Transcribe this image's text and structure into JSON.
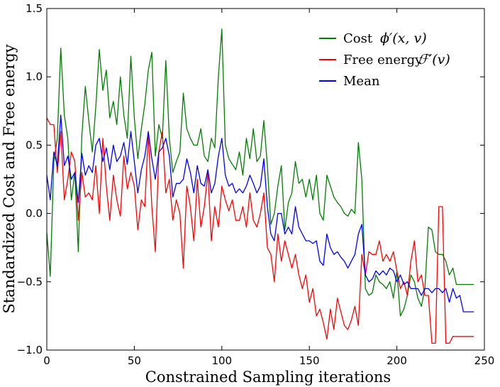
{
  "chart_data": {
    "type": "line",
    "xlabel": "Constrained Sampling iterations",
    "ylabel": "Standardized Cost and Free energy",
    "xlim": [
      0,
      250
    ],
    "ylim": [
      -1.0,
      1.5
    ],
    "xticks": [
      0,
      50,
      100,
      150,
      200,
      250
    ],
    "xtick_labels": [
      "0",
      "50",
      "100",
      "150",
      "200",
      "250"
    ],
    "yticks": [
      -1.0,
      -0.5,
      0.0,
      0.5,
      1.0,
      1.5
    ],
    "ytick_labels": [
      "−1.0",
      "−0.5",
      "0.0",
      "0.5",
      "1.0",
      "1.5"
    ],
    "grid": false,
    "legend_position": "top-right",
    "x": [
      0,
      2,
      4,
      6,
      8,
      10,
      12,
      14,
      16,
      18,
      20,
      22,
      24,
      26,
      28,
      30,
      32,
      34,
      36,
      38,
      40,
      42,
      44,
      46,
      48,
      50,
      52,
      54,
      56,
      58,
      60,
      62,
      64,
      66,
      68,
      70,
      72,
      74,
      76,
      78,
      80,
      82,
      84,
      86,
      88,
      90,
      92,
      94,
      96,
      98,
      100,
      102,
      104,
      106,
      108,
      110,
      112,
      114,
      116,
      118,
      120,
      122,
      124,
      126,
      128,
      130,
      132,
      134,
      136,
      138,
      140,
      142,
      144,
      146,
      148,
      150,
      152,
      154,
      156,
      158,
      160,
      162,
      164,
      166,
      168,
      170,
      172,
      174,
      176,
      178,
      180,
      182,
      184,
      186,
      188,
      190,
      192,
      194,
      196,
      198,
      200,
      202,
      204,
      206,
      208,
      210,
      212,
      214,
      216,
      218,
      220,
      222,
      224,
      226,
      228,
      230,
      232,
      234,
      236,
      238,
      240,
      242,
      244
    ],
    "series": [
      {
        "name": "Cost",
        "legend_math": "ϕ′(x, v)",
        "color": "#007f00",
        "values": [
          -0.14,
          -0.46,
          0.38,
          0.55,
          1.21,
          0.72,
          0.55,
          0.1,
          0.3,
          -0.28,
          0.57,
          0.93,
          0.68,
          0.45,
          0.78,
          1.2,
          0.9,
          1.05,
          0.7,
          0.82,
          0.65,
          1.0,
          0.72,
          0.55,
          1.15,
          0.7,
          0.4,
          0.62,
          0.8,
          1.05,
          1.18,
          0.42,
          0.65,
          0.55,
          1.12,
          0.55,
          0.3,
          0.38,
          0.45,
          0.88,
          0.62,
          0.55,
          0.5,
          0.5,
          0.62,
          0.42,
          0.38,
          0.55,
          0.48,
          1.0,
          1.35,
          0.5,
          0.4,
          0.36,
          0.32,
          0.45,
          0.28,
          0.55,
          0.4,
          0.62,
          0.38,
          0.42,
          0.68,
          0.35,
          -0.08,
          0.0,
          0.2,
          0.35,
          -0.12,
          0.08,
          0.15,
          0.38,
          0.22,
          0.25,
          0.12,
          0.25,
          0.1,
          0.28,
          0.0,
          -0.05,
          0.28,
          0.2,
          0.12,
          0.08,
          0.05,
          0.0,
          -0.02,
          0.03,
          0.0,
          0.52,
          0.25,
          -0.55,
          -0.6,
          -0.58,
          -0.45,
          -0.5,
          -0.52,
          -0.55,
          -0.5,
          -0.62,
          -0.42,
          -0.75,
          -0.7,
          -0.6,
          -0.45,
          -0.5,
          -0.62,
          -0.68,
          -0.55,
          -0.1,
          -0.12,
          -0.28,
          -0.3,
          -0.3,
          -0.35,
          -0.45,
          -0.4,
          -0.52,
          -0.52,
          -0.52,
          -0.52,
          -0.52,
          -0.52
        ]
      },
      {
        "name": "Free energy",
        "legend_math": "ℱ′(v)",
        "color": "#ff0000",
        "values": [
          0.7,
          0.65,
          0.65,
          0.3,
          0.6,
          0.1,
          0.25,
          0.45,
          0.38,
          -0.05,
          0.3,
          0.12,
          0.15,
          0.1,
          0.35,
          0.0,
          0.55,
          0.2,
          -0.05,
          0.28,
          0.1,
          -0.02,
          0.42,
          0.18,
          0.3,
          0.2,
          -0.12,
          0.1,
          0.05,
          0.58,
          0.05,
          -0.28,
          0.45,
          0.6,
          0.15,
          0.25,
          -0.05,
          0.1,
          0.0,
          -0.4,
          0.2,
          0.05,
          -0.2,
          0.25,
          -0.1,
          0.05,
          0.3,
          -0.2,
          0.05,
          -0.1,
          0.2,
          0.1,
          0.02,
          0.1,
          -0.05,
          -0.05,
          0.05,
          -0.1,
          0.15,
          -0.05,
          -0.1,
          0.0,
          0.15,
          -0.25,
          -0.3,
          -0.5,
          -0.15,
          -0.35,
          -0.2,
          -0.3,
          -0.4,
          -0.3,
          -0.45,
          -0.55,
          -0.45,
          -0.65,
          -0.55,
          -0.75,
          -0.7,
          -0.8,
          -0.92,
          -0.7,
          -0.85,
          -0.62,
          -0.72,
          -0.82,
          -0.85,
          -0.78,
          -0.68,
          -0.82,
          -0.3,
          -0.45,
          -0.28,
          -0.3,
          -0.3,
          -0.2,
          -0.35,
          -0.3,
          -0.35,
          -0.28,
          -0.42,
          -0.55,
          -0.5,
          -0.6,
          -0.35,
          -0.2,
          -0.5,
          -0.45,
          -0.6,
          -0.6,
          -0.95,
          -0.95,
          0.05,
          0.05,
          -0.95,
          -0.95,
          -0.9,
          -0.9,
          -0.9,
          -0.9,
          -0.9,
          -0.9,
          -0.9
        ]
      },
      {
        "name": "Mean",
        "legend_math": "",
        "color": "#0000ff",
        "values": [
          0.28,
          0.1,
          0.45,
          0.35,
          0.72,
          0.35,
          0.42,
          0.25,
          0.3,
          0.08,
          0.44,
          0.28,
          0.35,
          0.3,
          0.5,
          0.55,
          0.38,
          0.48,
          0.32,
          0.5,
          0.38,
          0.42,
          0.52,
          0.36,
          0.6,
          0.38,
          0.15,
          0.32,
          0.42,
          0.6,
          0.4,
          0.25,
          0.45,
          0.48,
          0.55,
          0.42,
          0.12,
          0.22,
          0.22,
          0.25,
          0.4,
          0.3,
          0.15,
          0.35,
          0.22,
          0.2,
          0.32,
          0.15,
          0.22,
          0.42,
          0.55,
          0.28,
          0.2,
          0.22,
          0.15,
          0.18,
          0.15,
          0.2,
          0.28,
          0.22,
          0.15,
          0.2,
          0.4,
          0.05,
          -0.15,
          -0.2,
          0.0,
          0.0,
          -0.15,
          -0.1,
          -0.15,
          0.05,
          -0.1,
          -0.15,
          -0.2,
          -0.2,
          -0.22,
          -0.2,
          -0.35,
          -0.38,
          -0.15,
          -0.25,
          -0.3,
          -0.28,
          -0.32,
          -0.35,
          -0.4,
          -0.35,
          -0.3,
          -0.15,
          -0.08,
          -0.45,
          -0.5,
          -0.48,
          -0.42,
          -0.45,
          -0.42,
          -0.45,
          -0.4,
          -0.42,
          -0.5,
          -0.45,
          -0.52,
          -0.5,
          -0.55,
          -0.55,
          -0.55,
          -0.6,
          -0.55,
          -0.55,
          -0.58,
          -0.55,
          -0.55,
          -0.58,
          -0.55,
          -0.65,
          -0.55,
          -0.62,
          -0.6,
          -0.72,
          -0.72,
          -0.72,
          -0.72
        ]
      }
    ]
  }
}
